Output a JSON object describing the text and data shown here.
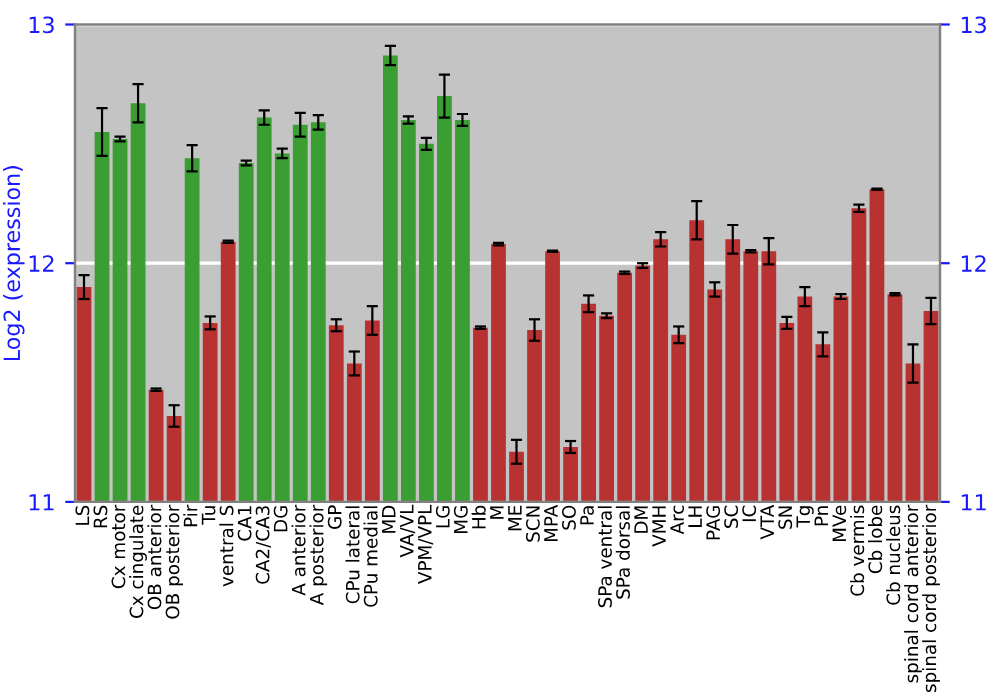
{
  "chart_data": {
    "type": "bar",
    "ylabel": "Log2 (expression)",
    "categories": [
      "LS",
      "RS",
      "Cx motor",
      "Cx cingulate",
      "OB anterior",
      "OB posterior",
      "Pir",
      "Tu",
      "ventral S",
      "CA1",
      "CA2/CA3",
      "DG",
      "A anterior",
      "A posterior",
      "GP",
      "CPu lateral",
      "CPu medial",
      "MD",
      "VA/VL",
      "VPM/VPL",
      "LG",
      "MG",
      "Hb",
      "M",
      "ME",
      "SCN",
      "MPA",
      "SO",
      "Pa",
      "SPa ventral",
      "SPa dorsal",
      "DM",
      "VMH",
      "Arc",
      "LH",
      "PAG",
      "SC",
      "IC",
      "VTA",
      "SN",
      "Tg",
      "Pn",
      "MVe",
      "Cb vermis",
      "Cb lobe",
      "Cb nucleus",
      "spinal cord anterior",
      "spinal cord posterior"
    ],
    "values": [
      11.9,
      12.55,
      12.52,
      12.67,
      11.47,
      11.36,
      12.44,
      11.75,
      12.09,
      12.42,
      12.61,
      12.46,
      12.58,
      12.59,
      11.74,
      11.58,
      11.76,
      12.87,
      12.6,
      12.5,
      12.7,
      12.6,
      11.73,
      12.08,
      11.21,
      11.72,
      12.05,
      11.23,
      11.83,
      11.78,
      11.96,
      11.99,
      12.1,
      11.7,
      12.18,
      11.89,
      12.1,
      12.05,
      12.05,
      11.75,
      11.86,
      11.66,
      11.86,
      12.23,
      12.31,
      11.87,
      11.58,
      11.8
    ],
    "errors": [
      0.05,
      0.1,
      0.01,
      0.08,
      0.005,
      0.045,
      0.055,
      0.027,
      0.005,
      0.01,
      0.03,
      0.02,
      0.05,
      0.03,
      0.025,
      0.05,
      0.06,
      0.04,
      0.015,
      0.025,
      0.09,
      0.025,
      0.005,
      0.005,
      0.05,
      0.045,
      0.003,
      0.025,
      0.035,
      0.01,
      0.005,
      0.01,
      0.03,
      0.035,
      0.08,
      0.03,
      0.06,
      0.005,
      0.055,
      0.025,
      0.04,
      0.05,
      0.01,
      0.015,
      0.003,
      0.005,
      0.08,
      0.055
    ],
    "colors": [
      "#b83232",
      "#3a9e32",
      "#3a9e32",
      "#3a9e32",
      "#b83232",
      "#b83232",
      "#3a9e32",
      "#b83232",
      "#b83232",
      "#3a9e32",
      "#3a9e32",
      "#3a9e32",
      "#3a9e32",
      "#3a9e32",
      "#b83232",
      "#b83232",
      "#b83232",
      "#3a9e32",
      "#3a9e32",
      "#3a9e32",
      "#3a9e32",
      "#3a9e32",
      "#b83232",
      "#b83232",
      "#b83232",
      "#b83232",
      "#b83232",
      "#b83232",
      "#b83232",
      "#b83232",
      "#b83232",
      "#b83232",
      "#b83232",
      "#b83232",
      "#b83232",
      "#b83232",
      "#b83232",
      "#b83232",
      "#b83232",
      "#b83232",
      "#b83232",
      "#b83232",
      "#b83232",
      "#b83232",
      "#b83232",
      "#b83232",
      "#b83232",
      "#b83232"
    ],
    "ylim": [
      11,
      13
    ],
    "yticks": [
      11,
      12,
      13
    ],
    "y2lim": [
      11,
      13
    ],
    "y2ticks": [
      11,
      12,
      13
    ],
    "grid": "y"
  }
}
